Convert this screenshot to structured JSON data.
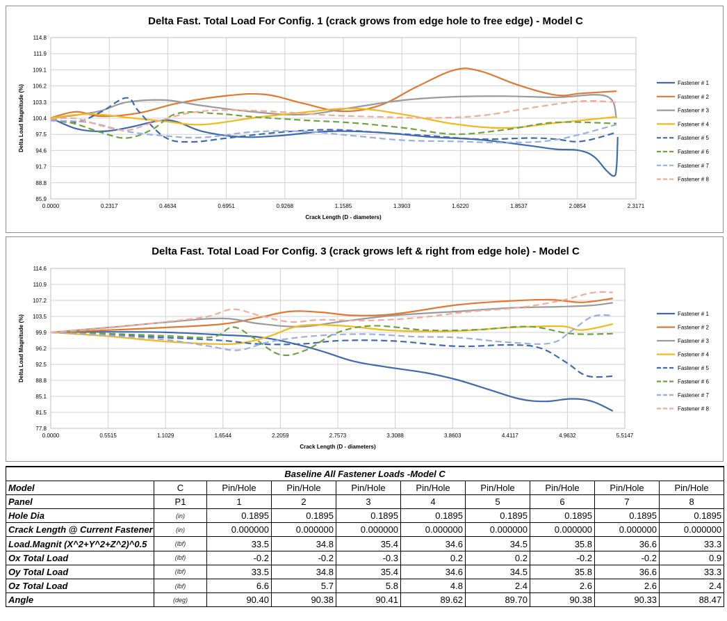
{
  "chart_data": [
    {
      "type": "line",
      "title": "Delta Fast. Total Load For Config. 1 (crack grows from edge hole to free edge) - Model C",
      "xlabel": "Crack Length (D - diameters)",
      "ylabel": "Delta Load Magnitude (%)",
      "xlim": [
        0,
        2.3171
      ],
      "ylim": [
        85.9,
        114.8
      ],
      "xticks": [
        "0.0000",
        "0.2317",
        "0.4634",
        "0.6951",
        "0.9268",
        "1.1585",
        "1.3903",
        "1.6220",
        "1.8537",
        "2.0854",
        "2.3171"
      ],
      "yticks": [
        "85.9",
        "88.8",
        "91.7",
        "94.6",
        "97.5",
        "100.4",
        "103.3",
        "106.2",
        "109.1",
        "111.9",
        "114.8"
      ],
      "series": [
        {
          "name": "Fastener # 1",
          "color": "#3f6ab0",
          "dash": false,
          "x": [
            0,
            0.1,
            0.2,
            0.3,
            0.43,
            0.5,
            0.6,
            0.75,
            0.9,
            1.1,
            1.3,
            1.5,
            1.7,
            1.9,
            2.0,
            2.09,
            2.15,
            2.2,
            2.23,
            2.24,
            2.245
          ],
          "y": [
            100.4,
            98.5,
            98.0,
            98.6,
            99.9,
            99.7,
            98.0,
            97.0,
            97.2,
            98.0,
            97.8,
            97.0,
            96.5,
            95.4,
            94.8,
            94.6,
            93.5,
            91.0,
            90.0,
            91.5,
            97.0
          ]
        },
        {
          "name": "Fastener # 2",
          "color": "#e07831",
          "dash": false,
          "x": [
            0,
            0.1,
            0.2,
            0.35,
            0.5,
            0.7,
            0.85,
            1.0,
            1.15,
            1.3,
            1.45,
            1.6,
            1.7,
            1.85,
            2.0,
            2.1,
            2.24
          ],
          "y": [
            100.4,
            101.5,
            100.7,
            101.3,
            103.0,
            104.4,
            104.6,
            103.0,
            101.6,
            102.6,
            106.0,
            109.0,
            108.8,
            106.3,
            104.5,
            104.8,
            105.2
          ]
        },
        {
          "name": "Fastener # 3",
          "color": "#9a9a9a",
          "dash": false,
          "x": [
            0,
            0.1,
            0.2,
            0.3,
            0.45,
            0.6,
            0.8,
            1.0,
            1.2,
            1.4,
            1.6,
            1.8,
            2.0,
            2.2,
            2.24
          ],
          "y": [
            100.4,
            100.9,
            101.7,
            103.2,
            103.6,
            102.6,
            101.5,
            101.0,
            102.3,
            103.6,
            104.2,
            104.3,
            104.1,
            104.3,
            100.4
          ]
        },
        {
          "name": "Fastener # 4",
          "color": "#f2b81c",
          "dash": false,
          "x": [
            0,
            0.15,
            0.3,
            0.45,
            0.6,
            0.8,
            1.0,
            1.2,
            1.4,
            1.6,
            1.8,
            2.0,
            2.24
          ],
          "y": [
            100.4,
            101.1,
            100.5,
            99.8,
            99.2,
            100.4,
            101.4,
            102.1,
            101.0,
            99.3,
            98.6,
            99.5,
            100.6
          ]
        },
        {
          "name": "Fastener # 5",
          "color": "#3f6ab0",
          "dash": true,
          "x": [
            0,
            0.1,
            0.2,
            0.3,
            0.35,
            0.45,
            0.55,
            0.7,
            0.9,
            1.1,
            1.3,
            1.5,
            1.7,
            1.9,
            2.0,
            2.1,
            2.24
          ],
          "y": [
            100.2,
            99.6,
            101.5,
            104.0,
            101.5,
            97.0,
            96.1,
            96.8,
            97.8,
            98.3,
            97.8,
            97.2,
            96.6,
            96.8,
            96.6,
            96.2,
            97.8
          ]
        },
        {
          "name": "Fastener # 6",
          "color": "#6fa23f",
          "dash": true,
          "x": [
            0,
            0.1,
            0.2,
            0.3,
            0.4,
            0.5,
            0.65,
            0.8,
            1.0,
            1.2,
            1.4,
            1.6,
            1.8,
            2.0,
            2.24
          ],
          "y": [
            100.2,
            99.3,
            97.8,
            96.8,
            98.3,
            101.2,
            101.2,
            100.6,
            100.0,
            99.5,
            98.6,
            97.5,
            98.3,
            99.6,
            99.4
          ]
        },
        {
          "name": "Fastener # 7",
          "color": "#9aaee0",
          "dash": true,
          "x": [
            0,
            0.15,
            0.3,
            0.45,
            0.6,
            0.8,
            1.0,
            1.2,
            1.4,
            1.6,
            1.8,
            2.0,
            2.24
          ],
          "y": [
            99.9,
            99.6,
            98.0,
            97.2,
            96.9,
            97.9,
            98.0,
            97.2,
            96.4,
            96.2,
            96.0,
            96.5,
            99.2
          ]
        },
        {
          "name": "Fastener # 8",
          "color": "#f2ab9a",
          "dash": true,
          "x": [
            0,
            0.1,
            0.2,
            0.3,
            0.4,
            0.55,
            0.7,
            0.9,
            1.1,
            1.3,
            1.5,
            1.7,
            1.9,
            2.1,
            2.24
          ],
          "y": [
            100.2,
            100.3,
            99.0,
            98.2,
            99.5,
            101.3,
            101.8,
            101.5,
            100.9,
            100.6,
            100.4,
            100.8,
            102.2,
            103.4,
            103.2
          ]
        }
      ]
    },
    {
      "type": "line",
      "title": "Delta Fast. Total Load For Config. 3 (crack grows left & right from edge hole) - Model C",
      "xlabel": "Crack Length (D - diameters)",
      "ylabel": "Delta Load Magnitude (%)",
      "xlim": [
        0,
        5.5147
      ],
      "ylim": [
        77.8,
        114.6
      ],
      "xticks": [
        "0.0000",
        "0.5515",
        "1.1029",
        "1.6544",
        "2.2059",
        "2.7573",
        "3.3088",
        "3.8603",
        "4.4117",
        "4.9632",
        "5.5147"
      ],
      "yticks": [
        "77.8",
        "81.5",
        "85.1",
        "88.8",
        "92.5",
        "96.2",
        "99.9",
        "103.5",
        "107.2",
        "110.9",
        "114.6"
      ],
      "series": [
        {
          "name": "Fastener # 1",
          "color": "#3f6ab0",
          "dash": false,
          "x": [
            0,
            0.55,
            1.1,
            1.65,
            2.0,
            2.3,
            2.6,
            2.9,
            3.2,
            3.6,
            3.9,
            4.2,
            4.5,
            4.75,
            5.0,
            5.2,
            5.4
          ],
          "y": [
            99.9,
            100.0,
            99.9,
            99.3,
            98.8,
            97.5,
            95.6,
            93.3,
            92.0,
            90.6,
            89.0,
            86.8,
            84.6,
            84.0,
            84.6,
            84.0,
            81.8
          ]
        },
        {
          "name": "Fastener # 2",
          "color": "#e07831",
          "dash": false,
          "x": [
            0,
            0.55,
            1.1,
            1.65,
            2.0,
            2.3,
            2.6,
            2.9,
            3.3,
            3.9,
            4.4,
            4.8,
            5.1,
            5.4
          ],
          "y": [
            99.9,
            100.4,
            101.0,
            101.8,
            103.3,
            104.7,
            104.5,
            103.8,
            104.1,
            106.2,
            107.1,
            107.4,
            106.8,
            107.7
          ]
        },
        {
          "name": "Fastener # 3",
          "color": "#9a9a9a",
          "dash": false,
          "x": [
            0,
            0.55,
            1.1,
            1.65,
            2.0,
            2.4,
            2.8,
            3.3,
            3.9,
            4.4,
            4.9,
            5.2,
            5.4
          ],
          "y": [
            99.9,
            101.0,
            102.2,
            103.1,
            101.9,
            101.2,
            102.4,
            103.8,
            104.7,
            105.5,
            105.8,
            106.1,
            106.7
          ]
        },
        {
          "name": "Fastener # 4",
          "color": "#f2b81c",
          "dash": false,
          "x": [
            0,
            0.55,
            1.1,
            1.6,
            1.85,
            2.1,
            2.4,
            2.8,
            3.3,
            3.9,
            4.4,
            4.9,
            5.1,
            5.4
          ],
          "y": [
            99.9,
            99.0,
            97.8,
            97.2,
            97.5,
            99.0,
            101.4,
            101.4,
            100.3,
            100.2,
            101.0,
            101.3,
            100.4,
            101.8
          ]
        },
        {
          "name": "Fastener # 5",
          "color": "#3f6ab0",
          "dash": true,
          "x": [
            0,
            0.55,
            1.1,
            1.65,
            2.0,
            2.4,
            2.8,
            3.3,
            3.9,
            4.4,
            4.7,
            4.95,
            5.15,
            5.4
          ],
          "y": [
            99.9,
            99.3,
            98.7,
            98.0,
            97.2,
            97.2,
            98.0,
            97.9,
            96.7,
            97.0,
            96.3,
            93.0,
            89.9,
            89.8
          ]
        },
        {
          "name": "Fastener # 6",
          "color": "#6fa23f",
          "dash": true,
          "x": [
            0,
            0.55,
            1.1,
            1.55,
            1.75,
            1.95,
            2.2,
            2.45,
            2.75,
            3.1,
            3.6,
            4.1,
            4.6,
            5.0,
            5.4
          ],
          "y": [
            99.9,
            99.6,
            99.1,
            98.8,
            101.1,
            98.6,
            94.8,
            95.8,
            99.8,
            101.4,
            100.4,
            100.5,
            101.2,
            99.6,
            99.6
          ]
        },
        {
          "name": "Fastener # 7",
          "color": "#9aaee0",
          "dash": true,
          "x": [
            0,
            0.55,
            1.1,
            1.5,
            1.8,
            2.1,
            2.5,
            3.0,
            3.5,
            3.9,
            4.4,
            4.8,
            5.0,
            5.2,
            5.4
          ],
          "y": [
            99.9,
            99.2,
            98.2,
            96.8,
            95.8,
            97.7,
            99.0,
            99.5,
            98.9,
            98.7,
            97.6,
            97.4,
            100.2,
            103.5,
            103.8
          ]
        },
        {
          "name": "Fastener # 8",
          "color": "#f2ab9a",
          "dash": true,
          "x": [
            0,
            0.55,
            1.1,
            1.5,
            1.75,
            2.0,
            2.3,
            2.6,
            3.0,
            3.5,
            4.0,
            4.5,
            4.9,
            5.2,
            5.4
          ],
          "y": [
            99.9,
            100.9,
            102.3,
            103.5,
            105.2,
            103.8,
            102.3,
            102.8,
            102.6,
            103.2,
            104.6,
            105.6,
            107.2,
            109.0,
            109.1
          ]
        }
      ]
    }
  ],
  "table": {
    "title": "Baseline All Fastener Loads -Model C",
    "rows": [
      {
        "label": "Model",
        "unit": "C",
        "values": [
          "Pin/Hole",
          "Pin/Hole",
          "Pin/Hole",
          "Pin/Hole",
          "Pin/Hole",
          "Pin/Hole",
          "Pin/Hole",
          "Pin/Hole"
        ],
        "kind": "header"
      },
      {
        "label": "Panel",
        "unit": "P1",
        "values": [
          "1",
          "2",
          "3",
          "4",
          "5",
          "6",
          "7",
          "8"
        ],
        "kind": "header"
      },
      {
        "label": "Hole Dia",
        "unit": "(in)",
        "values": [
          "0.1895",
          "0.1895",
          "0.1895",
          "0.1895",
          "0.1895",
          "0.1895",
          "0.1895",
          "0.1895"
        ],
        "kind": "num"
      },
      {
        "label": "Crack Length @ Current Fastener",
        "unit": "(in)",
        "values": [
          "0.000000",
          "0.000000",
          "0.000000",
          "0.000000",
          "0.000000",
          "0.000000",
          "0.000000",
          "0.000000"
        ],
        "kind": "num"
      },
      {
        "label": "Load.Magnit  (X^2+Y^2+Z^2)^0.5",
        "unit": "(lbf)",
        "values": [
          "33.5",
          "34.8",
          "35.4",
          "34.6",
          "34.5",
          "35.8",
          "36.6",
          "33.3"
        ],
        "kind": "num"
      },
      {
        "label": "Ox Total Load",
        "unit": "(lbf)",
        "values": [
          "-0.2",
          "-0.2",
          "-0.3",
          "0.2",
          "0.2",
          "-0.2",
          "-0.2",
          "0.9"
        ],
        "kind": "num"
      },
      {
        "label": "Oy Total Load",
        "unit": "(lbf)",
        "values": [
          "33.5",
          "34.8",
          "35.4",
          "34.6",
          "34.5",
          "35.8",
          "36.6",
          "33.3"
        ],
        "kind": "num"
      },
      {
        "label": "Oz Total Load",
        "unit": "(lbf)",
        "values": [
          "6.6",
          "5.7",
          "5.8",
          "4.8",
          "2.4",
          "2.6",
          "2.6",
          "2.4"
        ],
        "kind": "num"
      },
      {
        "label": "Angle",
        "unit": "(deg)",
        "values": [
          "90.40",
          "90.38",
          "90.41",
          "89.62",
          "89.70",
          "90.38",
          "90.33",
          "88.47"
        ],
        "kind": "num"
      }
    ]
  }
}
